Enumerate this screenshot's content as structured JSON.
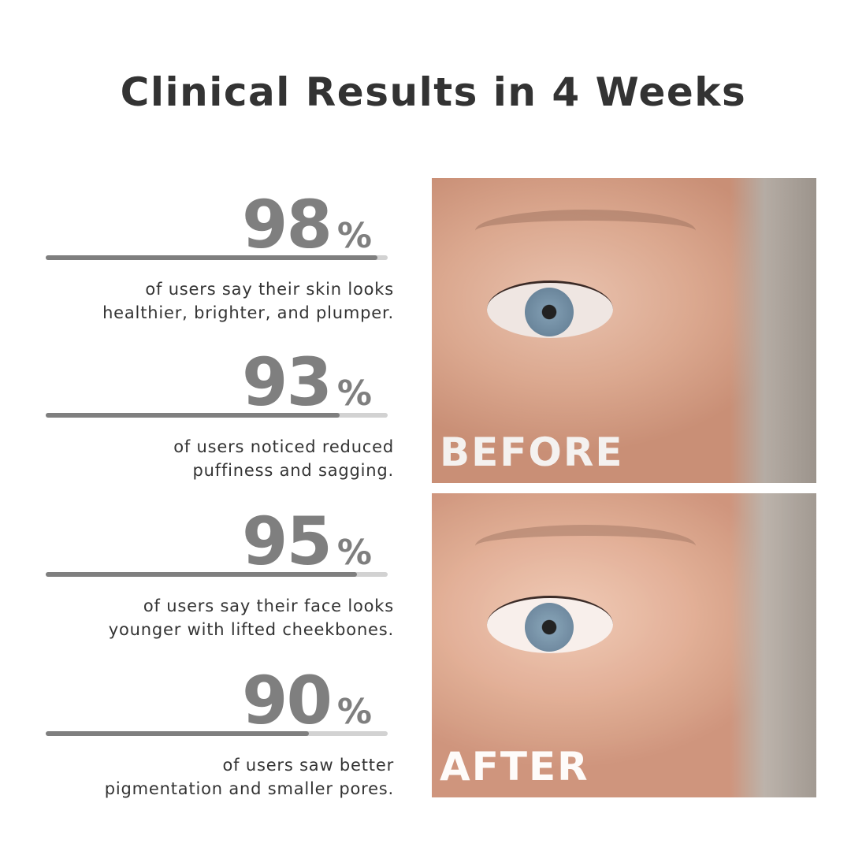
{
  "title": "Clinical Results in 4 Weeks",
  "colors": {
    "number": "#7f7f7f",
    "bar_fill": "#7f7f7f",
    "bar_track": "#d2d2d2",
    "text": "#333333"
  },
  "stats": [
    {
      "value": "98",
      "unit": "%",
      "bar_fill": 0.97,
      "line1": "of users say their skin looks",
      "line2": "healthier, brighter, and plumper."
    },
    {
      "value": "93",
      "unit": "%",
      "bar_fill": 0.86,
      "line1": "of users noticed reduced",
      "line2": "puffiness and sagging."
    },
    {
      "value": "95",
      "unit": "%",
      "bar_fill": 0.91,
      "line1": "of users say their face looks",
      "line2": "younger with lifted cheekbones."
    },
    {
      "value": "90",
      "unit": "%",
      "bar_fill": 0.77,
      "line1": "of users saw better",
      "line2": "pigmentation and smaller pores."
    }
  ],
  "photos": {
    "before_label": "BEFORE",
    "after_label": "AFTER"
  }
}
